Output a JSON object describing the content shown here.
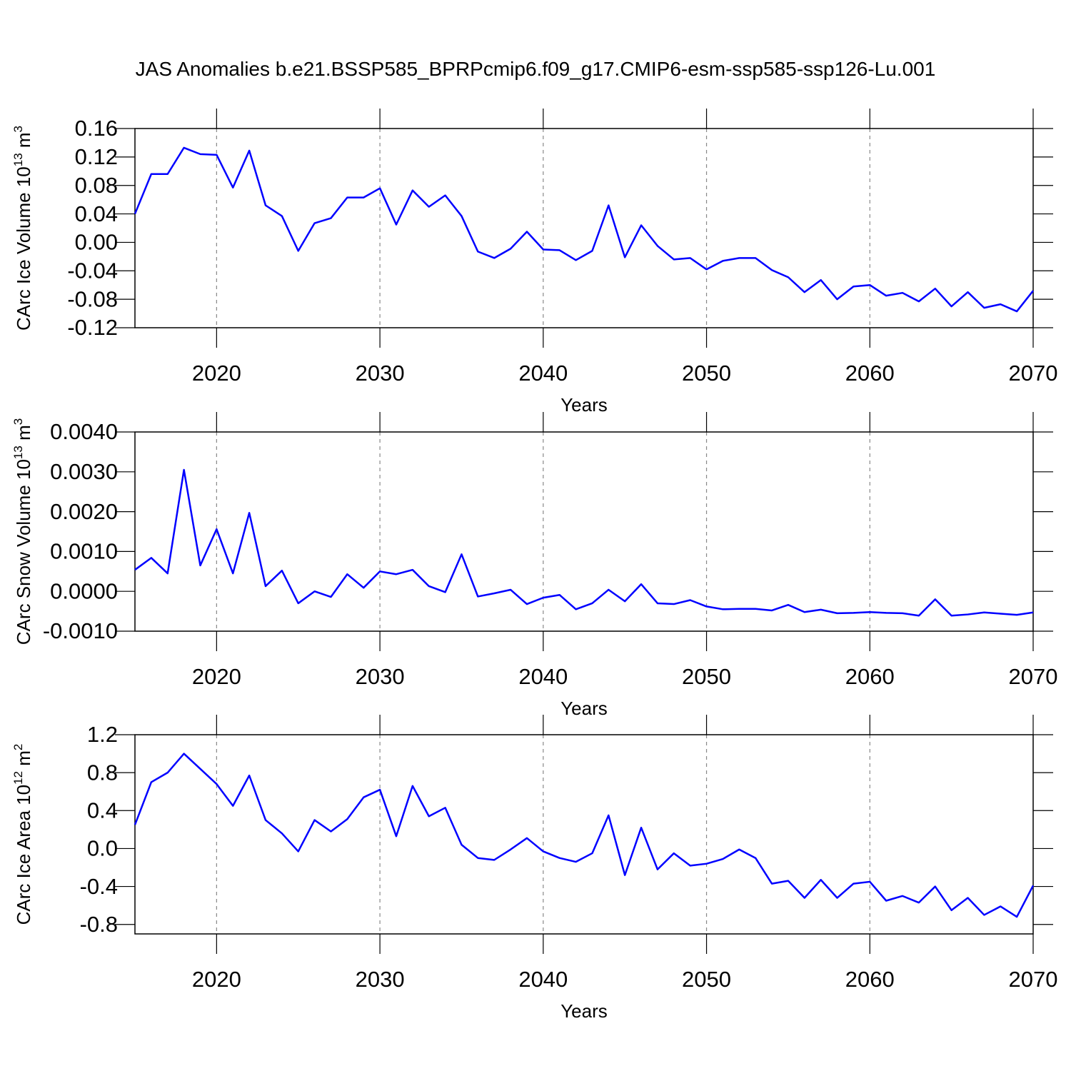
{
  "chart_data": [
    {
      "type": "line",
      "title": "JAS Anomalies b.e21.BSSP585_BPRPcmip6.f09_g17.CMIP6-esm-ssp585-ssp126-Lu.001",
      "xlabel": "Years",
      "ylabel": [
        "CArc Ice Volume 10",
        "13",
        " m",
        "3"
      ],
      "x": [
        2015,
        2016,
        2017,
        2018,
        2019,
        2020,
        2021,
        2022,
        2023,
        2024,
        2025,
        2026,
        2027,
        2028,
        2029,
        2030,
        2031,
        2032,
        2033,
        2034,
        2035,
        2036,
        2037,
        2038,
        2039,
        2040,
        2041,
        2042,
        2043,
        2044,
        2045,
        2046,
        2047,
        2048,
        2049,
        2050,
        2051,
        2052,
        2053,
        2054,
        2055,
        2056,
        2057,
        2058,
        2059,
        2060,
        2061,
        2062,
        2063,
        2064,
        2065,
        2066,
        2067,
        2068,
        2069,
        2070
      ],
      "series": [
        {
          "color": "#0000ff",
          "values": [
            0.04,
            0.096,
            0.096,
            0.133,
            0.124,
            0.123,
            0.077,
            0.129,
            0.052,
            0.037,
            -0.012,
            0.027,
            0.034,
            0.063,
            0.063,
            0.076,
            0.025,
            0.073,
            0.05,
            0.066,
            0.037,
            -0.013,
            -0.022,
            -0.009,
            0.015,
            -0.01,
            -0.011,
            -0.025,
            -0.012,
            0.052,
            -0.021,
            0.024,
            -0.005,
            -0.024,
            -0.022,
            -0.038,
            -0.026,
            -0.022,
            -0.022,
            -0.039,
            -0.049,
            -0.07,
            -0.053,
            -0.08,
            -0.062,
            -0.06,
            -0.075,
            -0.071,
            -0.083,
            -0.065,
            -0.09,
            -0.07,
            -0.092,
            -0.087,
            -0.097,
            -0.068
          ]
        }
      ],
      "xlim": [
        2015,
        2070
      ],
      "xticks": [
        2020,
        2030,
        2040,
        2050,
        2060,
        2070
      ],
      "ylim": [
        -0.12,
        0.16
      ],
      "yticks": [
        -0.12,
        -0.08,
        -0.04,
        {
          "value": 0,
          "label": "0.00"
        },
        0.04,
        0.08,
        0.12,
        0.16
      ],
      "grid": true
    },
    {
      "type": "line",
      "xlabel": "Years",
      "ylabel": [
        "CArc Snow Volume 10",
        "13",
        " m",
        "3"
      ],
      "x": [
        2015,
        2016,
        2017,
        2018,
        2019,
        2020,
        2021,
        2022,
        2023,
        2024,
        2025,
        2026,
        2027,
        2028,
        2029,
        2030,
        2031,
        2032,
        2033,
        2034,
        2035,
        2036,
        2037,
        2038,
        2039,
        2040,
        2041,
        2042,
        2043,
        2044,
        2045,
        2046,
        2047,
        2048,
        2049,
        2050,
        2051,
        2052,
        2053,
        2054,
        2055,
        2056,
        2057,
        2058,
        2059,
        2060,
        2061,
        2062,
        2063,
        2064,
        2065,
        2066,
        2067,
        2068,
        2069,
        2070
      ],
      "series": [
        {
          "color": "#0000ff",
          "values": [
            0.00054,
            0.00084,
            0.00045,
            0.00305,
            0.00065,
            0.00156,
            0.00045,
            0.00197,
            0.00013,
            0.00052,
            -0.0003,
            0,
            -0.00014,
            0.00043,
            9e-05,
            0.0005,
            0.00043,
            0.00054,
            0.00013,
            -2e-05,
            0.00093,
            -0.00013,
            -5e-05,
            4e-05,
            -0.00032,
            -0.00016,
            -9e-05,
            -0.00045,
            -0.0003,
            4e-05,
            -0.00025,
            0.00018,
            -0.0003,
            -0.00032,
            -0.00022,
            -0.00038,
            -0.00045,
            -0.00044,
            -0.00044,
            -0.00048,
            -0.00034,
            -0.00052,
            -0.00046,
            -0.00055,
            -0.00054,
            -0.00052,
            -0.00054,
            -0.00055,
            -0.00061,
            -0.0002,
            -0.00061,
            -0.00058,
            -0.00053,
            -0.00056,
            -0.00059,
            -0.00053
          ]
        }
      ],
      "xlim": [
        2015,
        2070
      ],
      "xticks": [
        2020,
        2030,
        2040,
        2050,
        2060,
        2070
      ],
      "ylim": [
        -0.001,
        0.004
      ],
      "yticks": [
        {
          "value": -0.001,
          "label": "-0.0010"
        },
        {
          "value": 0,
          "label": "0.0000"
        },
        {
          "value": 0.001,
          "label": "0.0010"
        },
        {
          "value": 0.002,
          "label": "0.0020"
        },
        {
          "value": 0.003,
          "label": "0.0030"
        },
        {
          "value": 0.004,
          "label": "0.0040"
        }
      ],
      "grid": true
    },
    {
      "type": "line",
      "xlabel": "Years",
      "ylabel": [
        "CArc Ice Area 10",
        "12",
        " m",
        "2"
      ],
      "x": [
        2015,
        2016,
        2017,
        2018,
        2019,
        2020,
        2021,
        2022,
        2023,
        2024,
        2025,
        2026,
        2027,
        2028,
        2029,
        2030,
        2031,
        2032,
        2033,
        2034,
        2035,
        2036,
        2037,
        2038,
        2039,
        2040,
        2041,
        2042,
        2043,
        2044,
        2045,
        2046,
        2047,
        2048,
        2049,
        2050,
        2051,
        2052,
        2053,
        2054,
        2055,
        2056,
        2057,
        2058,
        2059,
        2060,
        2061,
        2062,
        2063,
        2064,
        2065,
        2066,
        2067,
        2068,
        2069,
        2070
      ],
      "series": [
        {
          "color": "#0000ff",
          "values": [
            0.25,
            0.7,
            0.8,
            1.0,
            0.84,
            0.68,
            0.45,
            0.77,
            0.3,
            0.16,
            -0.03,
            0.3,
            0.18,
            0.31,
            0.54,
            0.62,
            0.13,
            0.66,
            0.34,
            0.43,
            0.04,
            -0.1,
            -0.12,
            -0.01,
            0.11,
            -0.03,
            -0.1,
            -0.14,
            -0.05,
            0.35,
            -0.28,
            0.22,
            -0.22,
            -0.05,
            -0.18,
            -0.16,
            -0.11,
            -0.01,
            -0.1,
            -0.37,
            -0.34,
            -0.52,
            -0.33,
            -0.52,
            -0.37,
            -0.35,
            -0.55,
            -0.5,
            -0.57,
            -0.4,
            -0.65,
            -0.52,
            -0.7,
            -0.61,
            -0.72,
            -0.39
          ]
        }
      ],
      "xlim": [
        2015,
        2070
      ],
      "xticks": [
        2020,
        2030,
        2040,
        2050,
        2060,
        2070
      ],
      "ylim": [
        -0.9,
        1.2
      ],
      "yticks": [
        -0.8,
        -0.4,
        {
          "value": 0,
          "label": "0.0"
        },
        0.4,
        0.8,
        1.2
      ],
      "grid": true
    }
  ]
}
